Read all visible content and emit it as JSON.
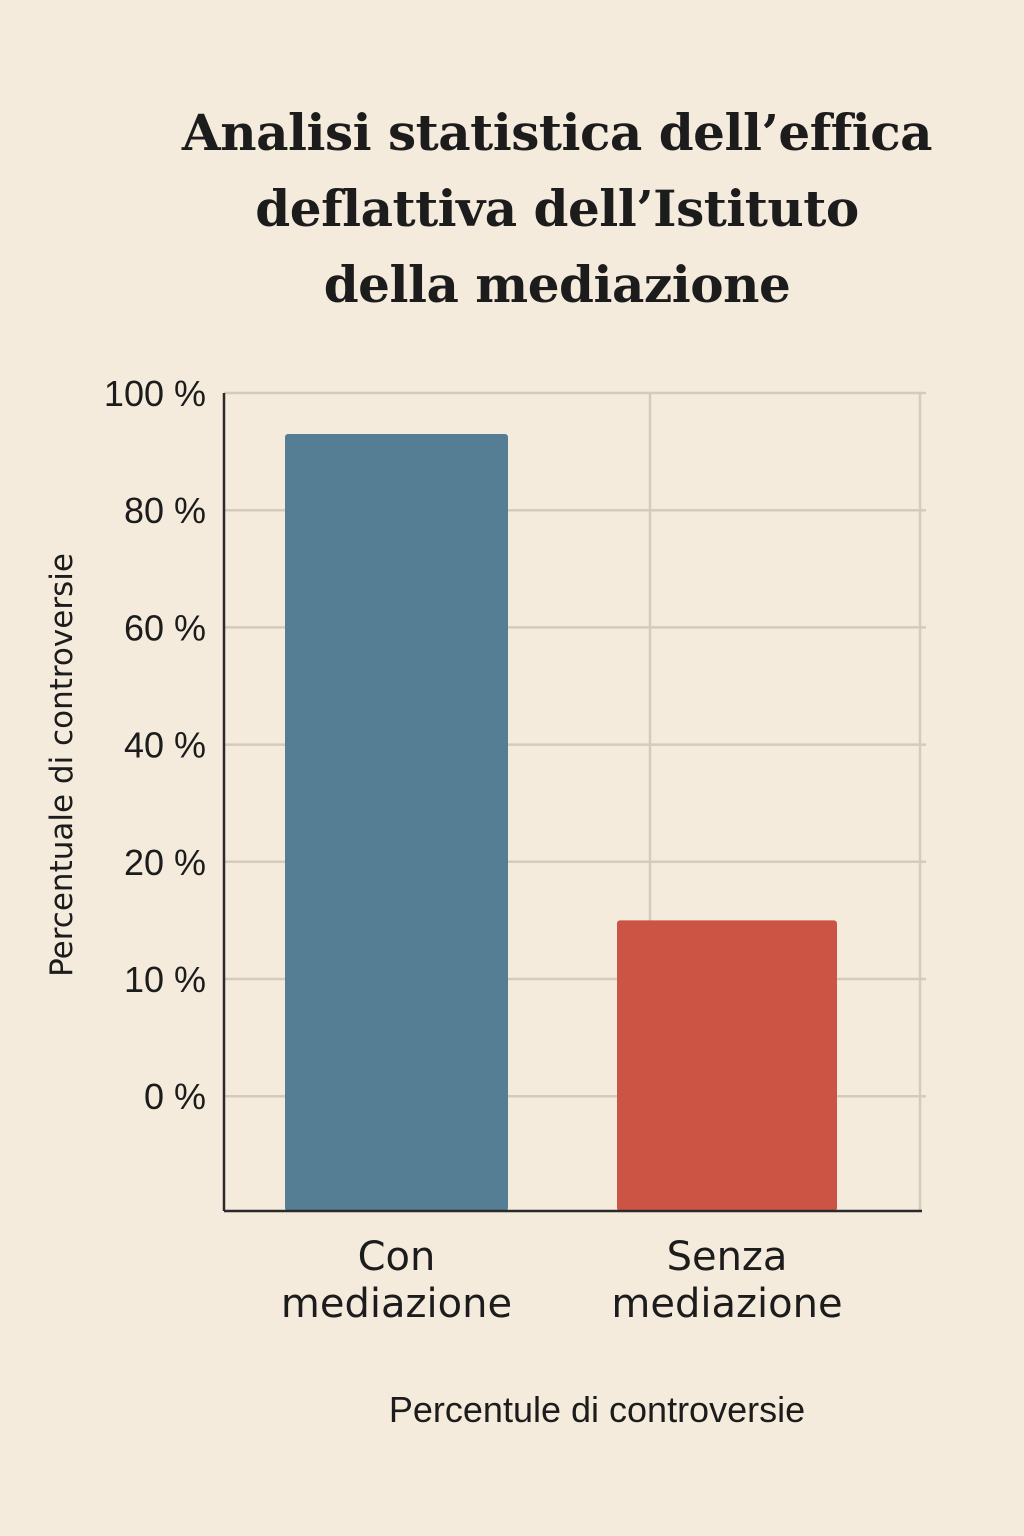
{
  "chart_data": {
    "type": "bar",
    "title": [
      "Analisi statistica dell’effica",
      "deflattiva dell’Istituto",
      "della mediazione"
    ],
    "ylabel": "Percentuale di controversie",
    "xlabel": "Percentule di controversie",
    "y_tick_labels": [
      "100 %",
      "80 %",
      "60 %",
      "40 %",
      "20 %",
      "10 %",
      "0 %"
    ],
    "y_tick_values": [
      100,
      80,
      60,
      40,
      20,
      10,
      0
    ],
    "categories": [
      [
        "Con",
        "mediazione"
      ],
      [
        "Senza",
        "mediazione"
      ]
    ],
    "values": [
      93,
      15
    ],
    "colors": [
      "#557d94",
      "#cc5444"
    ],
    "grid": true,
    "legend": "none"
  }
}
